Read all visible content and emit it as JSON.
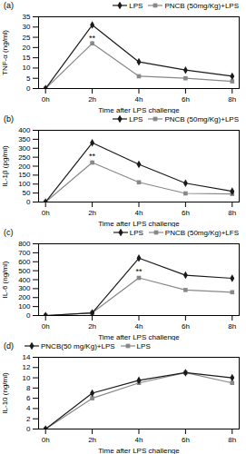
{
  "chart_data": [
    {
      "type": "line",
      "title": "(a)",
      "xlabel": "Time after LPS challenge",
      "ylabel": "TNF-α (ng/ml)",
      "x": [
        0,
        2,
        4,
        6,
        8
      ],
      "xlim": [
        -0.3,
        8.3
      ],
      "xticks": [
        {
          "value": 0,
          "label": "0h"
        },
        {
          "value": 2,
          "label": "2h"
        },
        {
          "value": 4,
          "label": "4h"
        },
        {
          "value": 6,
          "label": "6h"
        },
        {
          "value": 8,
          "label": "8h"
        }
      ],
      "ylim": [
        0,
        35
      ],
      "yticks": [
        0,
        5,
        10,
        15,
        20,
        25,
        30,
        35
      ],
      "series": [
        {
          "name": "LPS",
          "color": "#1a1a1a",
          "marker": "diamond",
          "values": [
            0,
            31,
            13,
            9,
            6
          ],
          "errors": [
            0,
            0.8,
            0.6,
            0.5,
            0.4
          ]
        },
        {
          "name": "PNCB (50mg/Kg)+LPS",
          "color": "#888888",
          "marker": "square",
          "values": [
            0,
            22,
            6,
            5,
            3.5
          ],
          "errors": [
            0,
            1.0,
            0.5,
            0.4,
            0.3
          ]
        }
      ],
      "annotations": [
        {
          "text": "**",
          "x": 2,
          "y": 23
        }
      ],
      "legend": "upper right",
      "grid": false
    },
    {
      "type": "line",
      "title": "(b)",
      "xlabel": "Time after LPS challenge",
      "ylabel": "IL-1β (pg/ml)",
      "x": [
        0,
        2,
        4,
        6,
        8
      ],
      "xlim": [
        -0.3,
        8.3
      ],
      "xticks": [
        {
          "value": 0,
          "label": "0h"
        },
        {
          "value": 2,
          "label": "2h"
        },
        {
          "value": 4,
          "label": "4h"
        },
        {
          "value": 6,
          "label": "6h"
        },
        {
          "value": 8,
          "label": "8h"
        }
      ],
      "ylim": [
        0,
        400
      ],
      "yticks": [
        0,
        50,
        100,
        150,
        200,
        250,
        300,
        350,
        400
      ],
      "series": [
        {
          "name": "LPS",
          "color": "#1a1a1a",
          "marker": "diamond",
          "values": [
            0,
            330,
            210,
            105,
            60
          ],
          "errors": [
            0,
            8,
            6,
            5,
            4
          ]
        },
        {
          "name": "PNCB (50mg/Kg)+LPS",
          "color": "#888888",
          "marker": "square",
          "values": [
            0,
            220,
            110,
            48,
            45
          ],
          "errors": [
            0,
            10,
            6,
            4,
            3
          ]
        }
      ],
      "annotations": [
        {
          "text": "**",
          "x": 2,
          "y": 235
        }
      ],
      "legend": "upper right",
      "grid": false
    },
    {
      "type": "line",
      "title": "(c)",
      "xlabel": "Time after LPS challenge",
      "ylabel": "IL-6 (ng/ml)",
      "x": [
        0,
        2,
        4,
        6,
        8
      ],
      "xlim": [
        -0.3,
        8.3
      ],
      "xticks": [
        {
          "value": 0,
          "label": "0h"
        },
        {
          "value": 2,
          "label": "2h"
        },
        {
          "value": 4,
          "label": "4h"
        },
        {
          "value": 6,
          "label": "6h"
        },
        {
          "value": 8,
          "label": "8h"
        }
      ],
      "ylim": [
        0,
        800
      ],
      "yticks": [
        0,
        100,
        200,
        300,
        400,
        500,
        600,
        700,
        800
      ],
      "series": [
        {
          "name": "LPS",
          "color": "#1a1a1a",
          "marker": "diamond",
          "values": [
            0,
            30,
            640,
            450,
            415
          ],
          "errors": [
            0,
            4,
            12,
            10,
            8
          ]
        },
        {
          "name": "PNCB (50mg/Kg)+LFS",
          "color": "#888888",
          "marker": "square",
          "values": [
            0,
            30,
            420,
            285,
            260
          ],
          "errors": [
            0,
            4,
            15,
            8,
            6
          ]
        }
      ],
      "annotations": [
        {
          "text": "**",
          "x": 4,
          "y": 450
        }
      ],
      "legend": "upper right",
      "grid": false
    },
    {
      "type": "line",
      "title": "(d)",
      "xlabel": "Time after LPS challenge",
      "ylabel": "IL-10 (ng/ml)",
      "x": [
        0,
        2,
        4,
        6,
        8
      ],
      "xlim": [
        -0.3,
        8.3
      ],
      "xticks": [
        {
          "value": 0,
          "label": "0h"
        },
        {
          "value": 2,
          "label": "2h"
        },
        {
          "value": 4,
          "label": "4h"
        },
        {
          "value": 6,
          "label": "6h"
        },
        {
          "value": 8,
          "label": "8h"
        }
      ],
      "ylim": [
        0,
        14
      ],
      "yticks": [
        0,
        2,
        4,
        6,
        8,
        10,
        12,
        14
      ],
      "series": [
        {
          "name": "PNCB(50 mg/Kg)+LPS",
          "color": "#1a1a1a",
          "marker": "diamond",
          "values": [
            0,
            7,
            9.5,
            11,
            10
          ],
          "errors": [
            0,
            0.3,
            0.4,
            0.4,
            0.3
          ]
        },
        {
          "name": "LPS",
          "color": "#888888",
          "marker": "square",
          "values": [
            0,
            6,
            9,
            11,
            9
          ],
          "errors": [
            0,
            0.3,
            0.4,
            0.4,
            0.3
          ]
        }
      ],
      "legend": "upper left",
      "grid": false
    }
  ]
}
